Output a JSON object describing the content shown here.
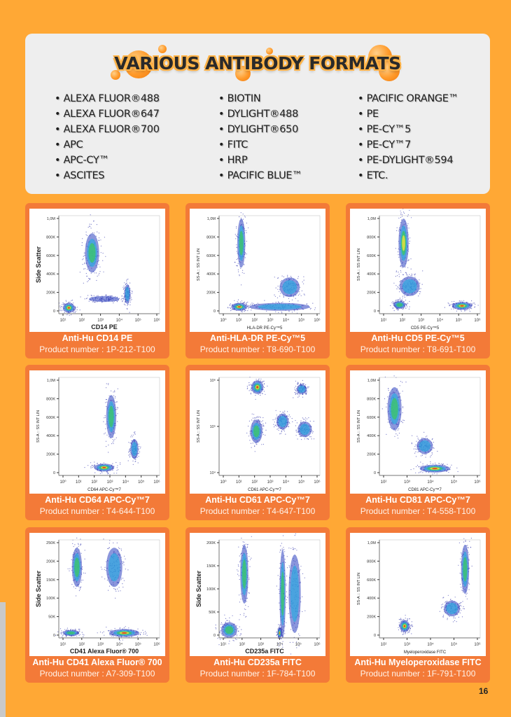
{
  "header": {
    "title": "VARIOUS ANTIBODY FORMATS"
  },
  "formats": {
    "col1": [
      "ALEXA FLUOR®488",
      "ALEXA FLUOR®647",
      "ALEXA FLUOR®700",
      "APC",
      "APC-CY™",
      "ASCITES"
    ],
    "col2": [
      "BIOTIN",
      "DYLIGHT®488",
      "DYLIGHT®650",
      "FITC",
      "HRP",
      "PACIFIC BLUE™"
    ],
    "col3": [
      "PACIFIC ORANGE™",
      "PE",
      "PE-CY™5",
      "PE-CY™7",
      " PE-DYLIGHT®594",
      "ETC."
    ]
  },
  "colors": {
    "page": "#FFA835",
    "card": "#F37A38",
    "panel": "#EEEEEE"
  },
  "products": [
    {
      "name": "Anti-Hu CD14 PE",
      "number": "Product number : 1P-212-T100",
      "plot": {
        "ylabel": "Side Scatter",
        "xlabel": "CD14 PE",
        "bold_labels": true,
        "yticks": [
          "0",
          "200K",
          "400K",
          "600K",
          "800K",
          "1,0M"
        ],
        "xticks": [
          "10¹",
          "10²",
          "10³",
          "10⁴",
          "10⁵",
          "10⁶"
        ]
      }
    },
    {
      "name": "Anti-HLA-DR PE-Cy™5",
      "number": "Product number : T8-690-T100",
      "plot": {
        "ylabel": "SS-A :: SS INT LIN",
        "xlabel": "HLA-DR PE-Cy™5",
        "bold_labels": false,
        "yticks": [
          "0",
          "200K",
          "400K",
          "600K",
          "800K",
          "1,0M"
        ],
        "xticks": [
          "10⁰",
          "10¹",
          "10²",
          "10³",
          "10⁴",
          "10⁵",
          "10⁶"
        ]
      }
    },
    {
      "name": "Anti-Hu CD5 PE-Cy™5",
      "number": "Product number : T8-691-T100",
      "plot": {
        "ylabel": "SS-A :: SS INT LIN",
        "xlabel": "CD5 PE-Cy™5",
        "bold_labels": false,
        "yticks": [
          "0",
          "200K",
          "400K",
          "600K",
          "800K",
          "1,0M"
        ],
        "xticks": [
          "10¹",
          "10²",
          "10³",
          "10⁴",
          "10⁵",
          "10⁶"
        ]
      }
    },
    {
      "name": "Anti-Hu CD64 APC-Cy™7",
      "number": "Product number : T4-644-T100",
      "plot": {
        "ylabel": "SS-A :: SS INT LIN",
        "xlabel": "CD64 APC-Cy™7",
        "bold_labels": false,
        "yticks": [
          "0",
          "200K",
          "400K",
          "600K",
          "800K",
          "1,0M"
        ],
        "xticks": [
          "10⁰",
          "10¹",
          "10²",
          "10³",
          "10⁴",
          "10⁵",
          "10⁶"
        ]
      }
    },
    {
      "name": "Anti-Hu CD61 APC-Cy™7",
      "number": "Product number : T4-647-T100",
      "plot": {
        "ylabel": "SS-A :: SS INT LIN",
        "xlabel": "CD61 APC-Cy™7",
        "bold_labels": false,
        "yticks": [
          "10⁴",
          "10⁵",
          "10⁶"
        ],
        "xticks": [
          "10⁰",
          "10¹",
          "10²",
          "10³",
          "10⁴",
          "10⁵",
          "10⁶"
        ]
      }
    },
    {
      "name": "Anti-Hu CD81 APC-Cy™7",
      "number": "Product number : T4-558-T100",
      "plot": {
        "ylabel": "SS-A :: SS INT LIN",
        "xlabel": "CD81 APC-Cy™7",
        "bold_labels": false,
        "yticks": [
          "0",
          "200K",
          "400K",
          "600K",
          "800K",
          "1,0M"
        ],
        "xticks": [
          "10²",
          "10³",
          "10⁴",
          "10⁵",
          "10⁶"
        ]
      }
    },
    {
      "name": "Anti-Hu CD41 Alexa Fluor® 700",
      "number": "Product number : A7-309-T100",
      "plot": {
        "ylabel": "Side Scatter",
        "xlabel": "CD41 Alexa Fluor® 700",
        "bold_labels": true,
        "yticks": [
          "0",
          "50K",
          "100K",
          "150K",
          "200K",
          "250K"
        ],
        "xticks": [
          "10¹",
          "10²",
          "10³",
          "10⁴",
          "10⁵",
          "10⁶"
        ]
      }
    },
    {
      "name": "Anti-Hu CD235a FITC",
      "number": "Product number : 1F-784-T100",
      "plot": {
        "ylabel": "Side Scatter",
        "xlabel": "CD235a FITC",
        "bold_labels": true,
        "yticks": [
          "0",
          "50K",
          "100K",
          "150K",
          "200K"
        ],
        "xticks": [
          "10¹",
          "10²",
          "10³",
          "10⁴",
          "10⁵",
          "10⁶"
        ]
      }
    },
    {
      "name": "Anti-Hu Myeloperoxidase FITC",
      "number": "Product number : 1F-791-T100",
      "plot": {
        "ylabel": "SS-A :: SS INT LIN",
        "xlabel": "Myeloperoxidase FITC",
        "bold_labels": false,
        "yticks": [
          "0",
          "200K",
          "400K",
          "600K",
          "800K",
          "1,0M"
        ],
        "xticks": [
          "10²",
          "10³",
          "10⁴",
          "10⁵",
          "10⁶"
        ]
      }
    }
  ],
  "page_number": "16"
}
